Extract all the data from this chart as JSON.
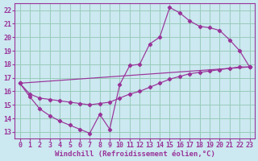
{
  "xlabel": "Windchill (Refroidissement éolien,°C)",
  "bg_color": "#cce8f0",
  "grid_color": "#99ccbb",
  "line_color": "#993399",
  "xlim": [
    -0.5,
    23.5
  ],
  "ylim": [
    12.5,
    22.5
  ],
  "yticks": [
    13,
    14,
    15,
    16,
    17,
    18,
    19,
    20,
    21,
    22
  ],
  "xticks": [
    0,
    1,
    2,
    3,
    4,
    5,
    6,
    7,
    8,
    9,
    10,
    11,
    12,
    13,
    14,
    15,
    16,
    17,
    18,
    19,
    20,
    21,
    22,
    23
  ],
  "font_size_xlabel": 6.5,
  "font_size_ticks": 6.0,
  "line1_x": [
    0,
    1,
    2,
    3,
    4,
    5,
    6,
    7,
    8,
    9,
    10,
    11,
    12,
    13,
    14,
    15,
    16,
    17,
    18,
    19,
    20,
    21,
    22,
    23
  ],
  "line1_y": [
    16.6,
    15.6,
    14.7,
    14.2,
    13.8,
    13.5,
    13.2,
    12.9,
    14.3,
    13.2,
    16.5,
    17.9,
    18.0,
    19.5,
    20.0,
    22.2,
    21.8,
    21.2,
    20.8,
    20.7,
    20.5,
    19.8,
    19.0,
    17.8
  ],
  "line2_x": [
    0,
    1,
    2,
    3,
    4,
    5,
    6,
    7,
    8,
    9,
    10,
    11,
    12,
    13,
    14,
    15,
    16,
    17,
    18,
    19,
    20,
    21,
    22,
    23
  ],
  "line2_y": [
    16.6,
    15.8,
    15.5,
    15.4,
    15.3,
    15.2,
    15.1,
    15.0,
    15.1,
    15.2,
    15.5,
    15.8,
    16.0,
    16.3,
    16.6,
    16.9,
    17.1,
    17.3,
    17.4,
    17.5,
    17.6,
    17.7,
    17.8,
    17.8
  ],
  "line3_x": [
    0,
    23
  ],
  "line3_y": [
    16.6,
    17.8
  ]
}
